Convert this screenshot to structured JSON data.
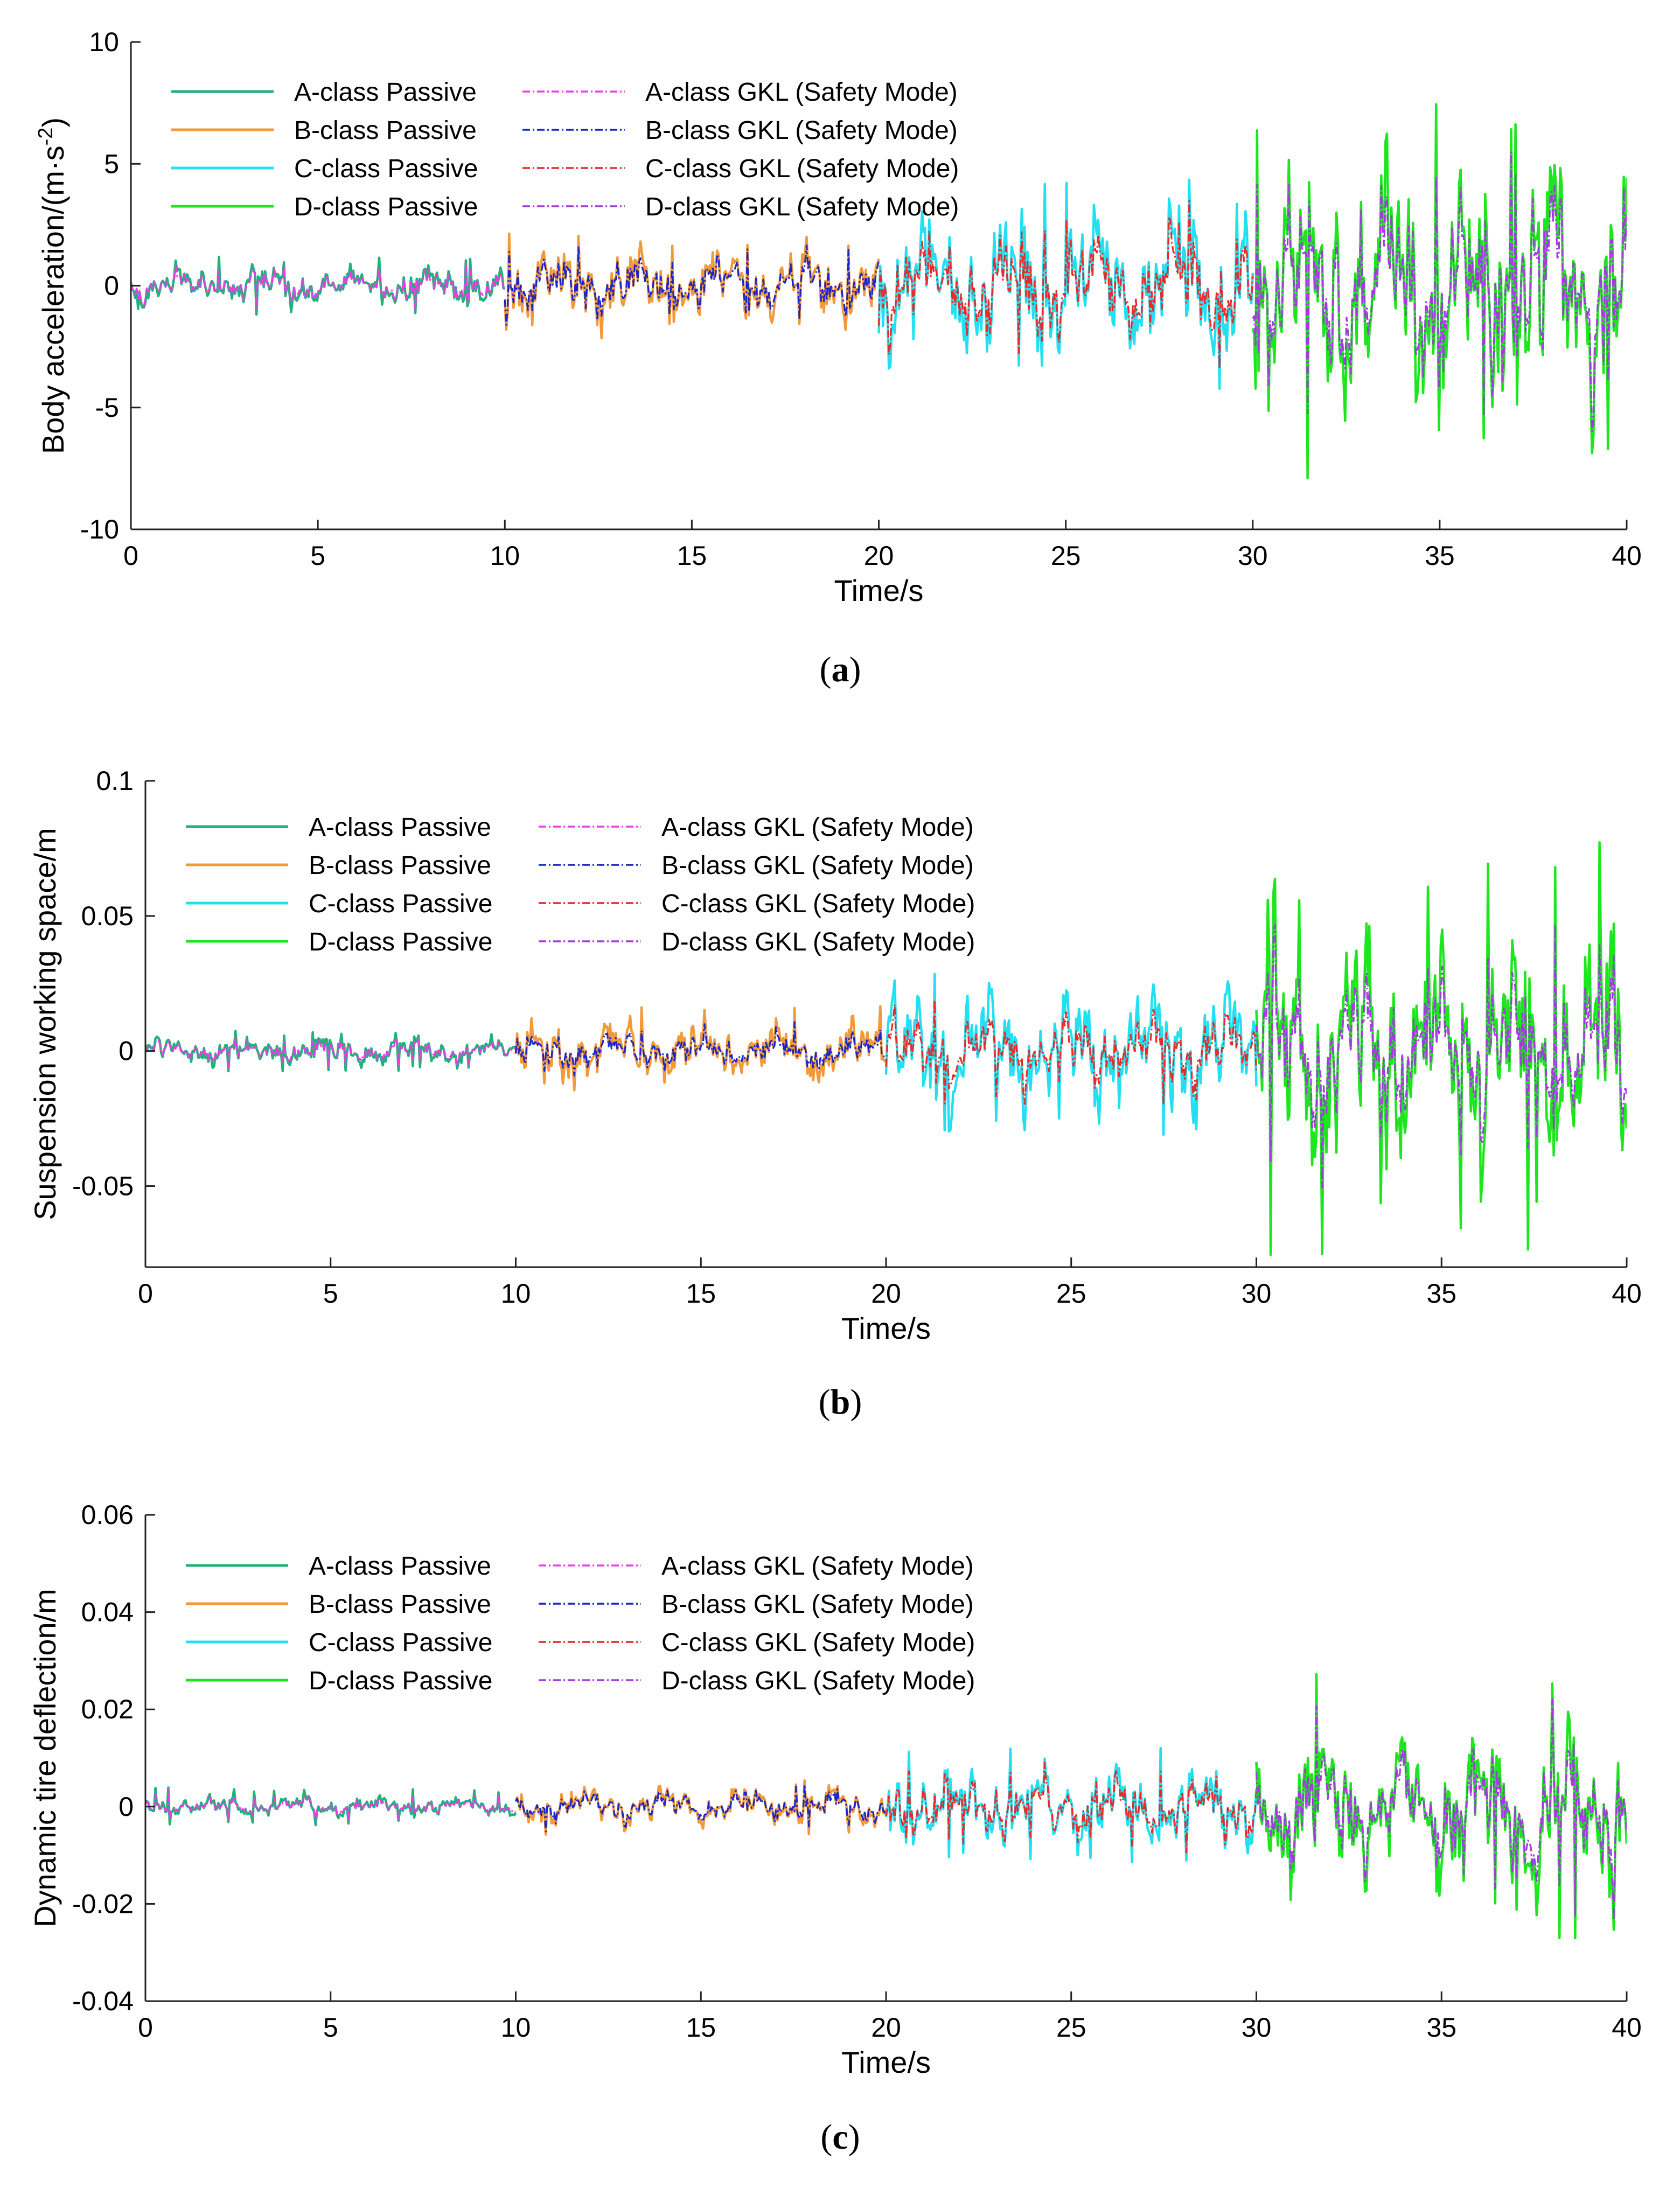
{
  "colors": {
    "A_passive": "#1fb37a",
    "B_passive": "#f29a3a",
    "C_passive": "#22e0f2",
    "D_passive": "#1ee61e",
    "A_gkl": "#e83ee8",
    "B_gkl": "#1c26c8",
    "C_gkl": "#e82a2a",
    "D_gkl": "#a23ae0"
  },
  "legend": {
    "passive": [
      "A-class Passive",
      "B-class Passive",
      "C-class Passive",
      "D-class Passive"
    ],
    "gkl": [
      "A-class GKL (Safety Mode)",
      "B-class GKL (Safety Mode)",
      "C-class GKL (Safety Mode)",
      "D-class GKL (Safety Mode)"
    ]
  },
  "chart_data": [
    {
      "type": "line",
      "panel": "(a)",
      "caption_letter": "a",
      "title": "",
      "xlabel": "Time/s",
      "ylabel_main": "Body acceleration/(m·s",
      "ylabel_sup": "-2",
      "ylabel_end": ")",
      "xlim": [
        0,
        40
      ],
      "ylim": [
        -10,
        10
      ],
      "xticks": [
        "0",
        "5",
        "10",
        "15",
        "20",
        "25",
        "30",
        "35",
        "40"
      ],
      "yticks": [
        "-10",
        "-5",
        "0",
        "5",
        "10"
      ],
      "ytick_values": [
        -10,
        -5,
        0,
        5,
        10
      ],
      "legend_position": "top-left",
      "segments": [
        {
          "class": "A",
          "x": [
            0,
            10
          ],
          "passive_amplitude": 0.6,
          "passive_peak": 1.2,
          "gkl_amplitude": 0.5,
          "gkl_peak": 0.9
        },
        {
          "class": "B",
          "x": [
            10,
            20
          ],
          "passive_amplitude": 1.1,
          "passive_peak": 2.2,
          "gkl_amplitude": 0.9,
          "gkl_peak": 1.8
        },
        {
          "class": "C",
          "x": [
            20,
            30
          ],
          "passive_amplitude": 2.2,
          "passive_peak": 4.5,
          "gkl_amplitude": 1.7,
          "gkl_peak": 3.4
        },
        {
          "class": "D",
          "x": [
            30,
            40
          ],
          "passive_amplitude": 4.0,
          "passive_peak": 8.3,
          "gkl_amplitude": 3.3,
          "gkl_peak": 7.7
        }
      ]
    },
    {
      "type": "line",
      "panel": "(b)",
      "caption_letter": "b",
      "title": "",
      "xlabel": "Time/s",
      "ylabel_main": "Suspension working space/m",
      "ylabel_sup": "",
      "ylabel_end": "",
      "xlim": [
        0,
        40
      ],
      "ylim": [
        -0.08,
        0.1
      ],
      "xticks": [
        "0",
        "5",
        "10",
        "15",
        "20",
        "25",
        "30",
        "35",
        "40"
      ],
      "yticks": [
        "-0.05",
        "0",
        "0.05",
        "0.1"
      ],
      "ytick_values": [
        -0.05,
        0,
        0.05,
        0.1
      ],
      "legend_position": "top-left",
      "segments": [
        {
          "class": "A",
          "x": [
            0,
            10
          ],
          "passive_amplitude": 0.004,
          "passive_peak": 0.008,
          "gkl_amplitude": 0.003,
          "gkl_peak": 0.006
        },
        {
          "class": "B",
          "x": [
            10,
            20
          ],
          "passive_amplitude": 0.009,
          "passive_peak": 0.017,
          "gkl_amplitude": 0.006,
          "gkl_peak": 0.012
        },
        {
          "class": "C",
          "x": [
            20,
            30
          ],
          "passive_amplitude": 0.018,
          "passive_peak": 0.033,
          "gkl_amplitude": 0.011,
          "gkl_peak": 0.024
        },
        {
          "class": "D",
          "x": [
            30,
            40
          ],
          "passive_amplitude": 0.035,
          "passive_peak": 0.078,
          "gkl_amplitude": 0.024,
          "gkl_peak": 0.055
        }
      ]
    },
    {
      "type": "line",
      "panel": "(c)",
      "caption_letter": "c",
      "title": "",
      "xlabel": "Time/s",
      "ylabel_main": "Dynamic tire deflection/m",
      "ylabel_sup": "",
      "ylabel_end": "",
      "xlim": [
        0,
        40
      ],
      "ylim": [
        -0.04,
        0.06
      ],
      "xticks": [
        "0",
        "5",
        "10",
        "15",
        "20",
        "25",
        "30",
        "35",
        "40"
      ],
      "yticks": [
        "-0.04",
        "-0.02",
        "0",
        "0.02",
        "0.04",
        "0.06"
      ],
      "ytick_values": [
        -0.04,
        -0.02,
        0,
        0.02,
        0.04,
        0.06
      ],
      "legend_position": "top-left",
      "segments": [
        {
          "class": "A",
          "x": [
            0,
            10
          ],
          "passive_amplitude": 0.0015,
          "passive_peak": 0.004,
          "gkl_amplitude": 0.0012,
          "gkl_peak": 0.003
        },
        {
          "class": "B",
          "x": [
            10,
            20
          ],
          "passive_amplitude": 0.003,
          "passive_peak": 0.006,
          "gkl_amplitude": 0.0025,
          "gkl_peak": 0.005
        },
        {
          "class": "C",
          "x": [
            20,
            30
          ],
          "passive_amplitude": 0.006,
          "passive_peak": 0.013,
          "gkl_amplitude": 0.005,
          "gkl_peak": 0.011
        },
        {
          "class": "D",
          "x": [
            30,
            40
          ],
          "passive_amplitude": 0.012,
          "passive_peak": 0.028,
          "gkl_amplitude": 0.01,
          "gkl_peak": 0.024
        }
      ]
    }
  ]
}
